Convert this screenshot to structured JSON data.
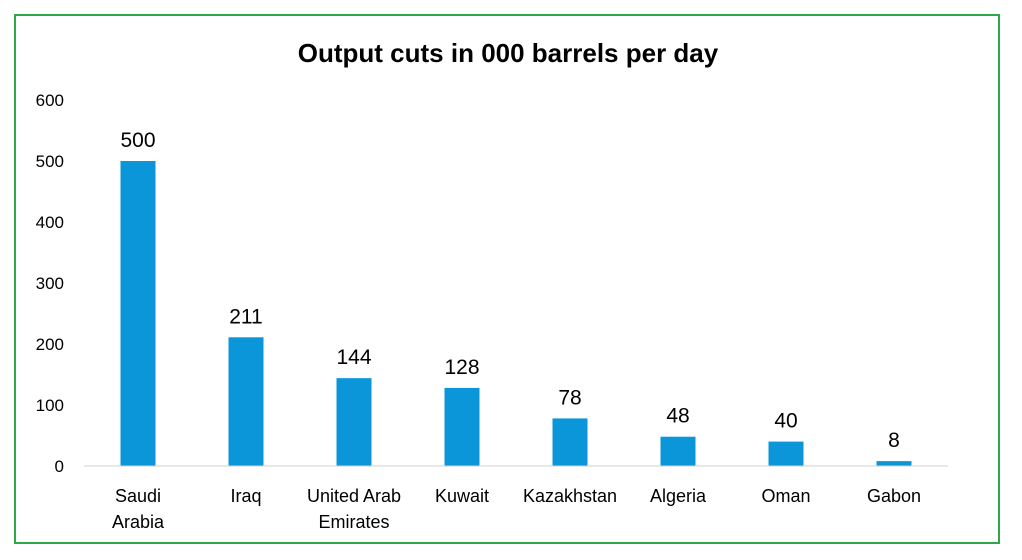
{
  "chart_data": {
    "type": "bar",
    "title": "Output cuts in 000 barrels per day",
    "xlabel": "",
    "ylabel": "",
    "categories": [
      [
        "Saudi",
        "Arabia"
      ],
      [
        "Iraq"
      ],
      [
        "United Arab",
        "Emirates"
      ],
      [
        "Kuwait"
      ],
      [
        "Kazakhstan"
      ],
      [
        "Algeria"
      ],
      [
        "Oman"
      ],
      [
        "Gabon"
      ]
    ],
    "values": [
      500,
      211,
      144,
      128,
      78,
      48,
      40,
      8
    ],
    "data_labels": [
      "500",
      "211",
      "144",
      "128",
      "78",
      "48",
      "40",
      "8"
    ],
    "ylim": [
      0,
      600
    ],
    "yticks": [
      0,
      100,
      200,
      300,
      400,
      500,
      600
    ],
    "grid": false,
    "legend": "none",
    "bar_color": "#0a96d8",
    "frame_color": "#2ea84a"
  }
}
